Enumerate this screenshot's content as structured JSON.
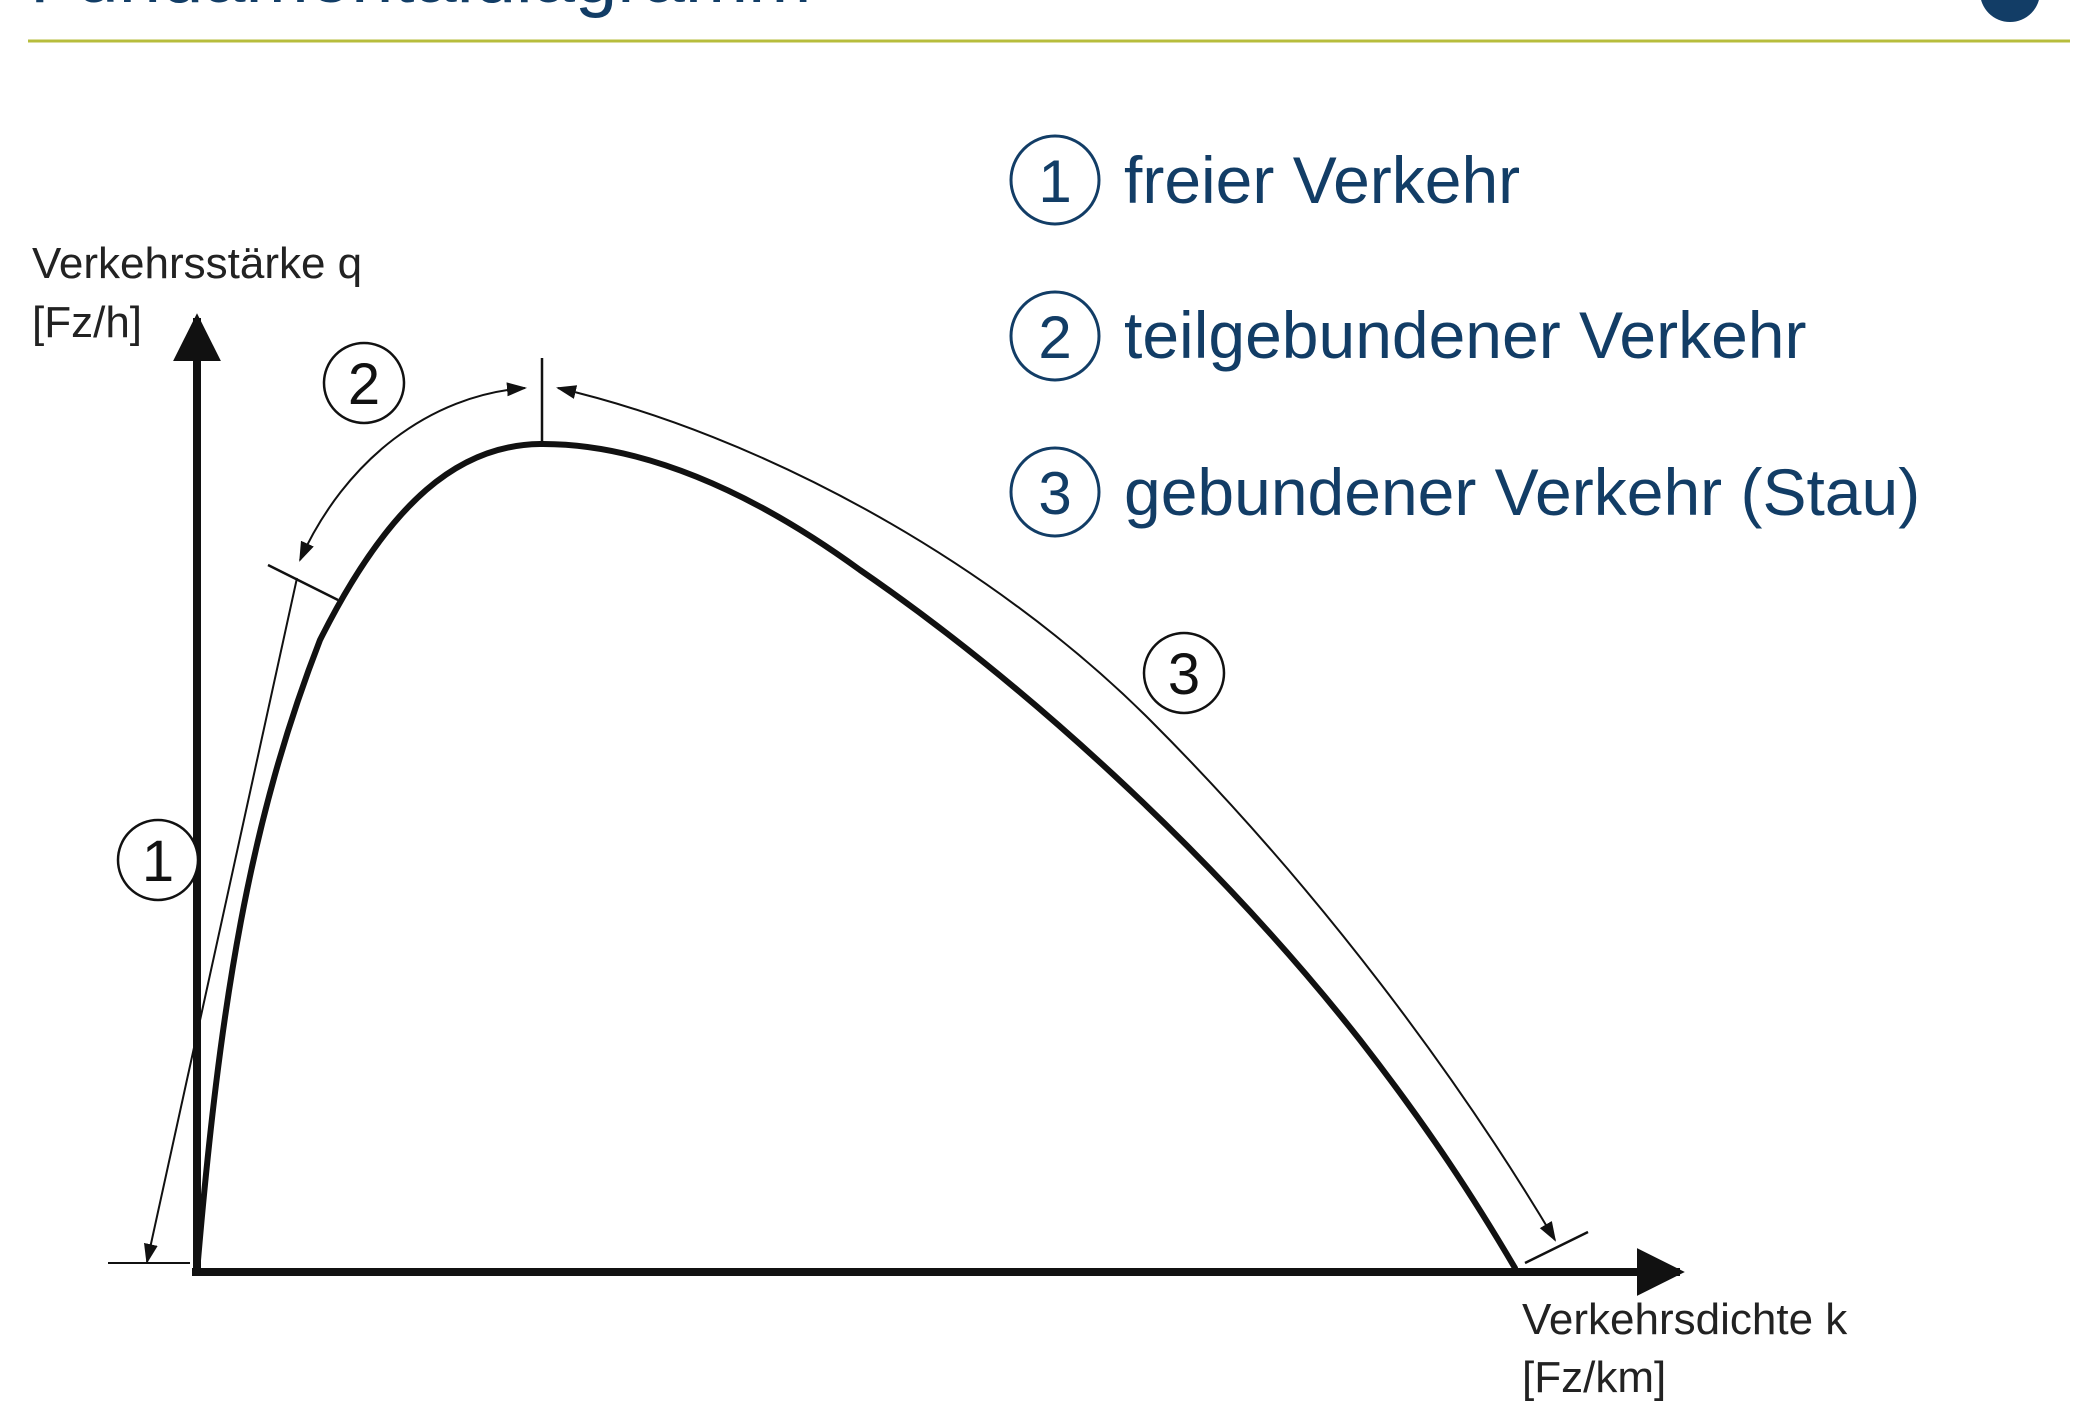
{
  "page": {
    "title": "Fundamentaldiagramm",
    "title_color": "#123d66",
    "rule_color": "#b7bd3c"
  },
  "legend": {
    "text_color": "#123d66",
    "items": [
      {
        "number": "1",
        "label": "freier Verkehr"
      },
      {
        "number": "2",
        "label": "teilgebundener Verkehr"
      },
      {
        "number": "3",
        "label": "gebundener Verkehr (Stau)"
      }
    ]
  },
  "axes": {
    "y_label": "Verkehrsstärke q",
    "y_unit": "[Fz/h]",
    "x_label": "Verkehrsdichte k",
    "x_unit": "[Fz/km]"
  },
  "markers": [
    "1",
    "2",
    "3"
  ]
}
